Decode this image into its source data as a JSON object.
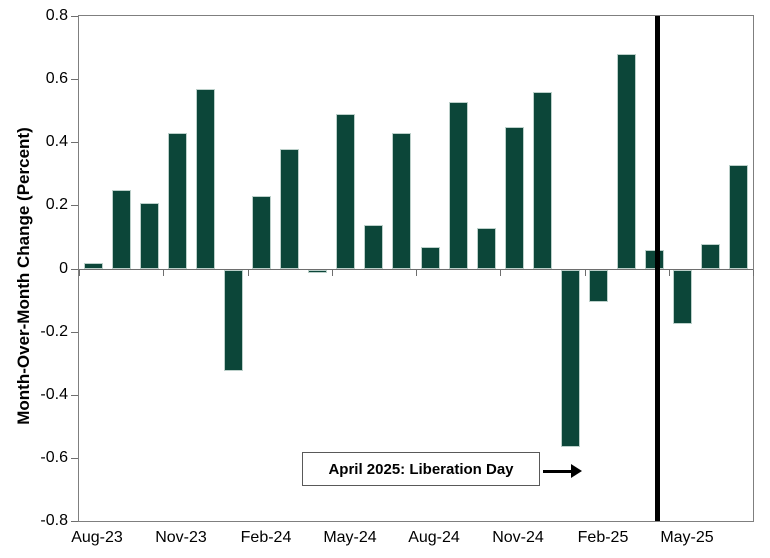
{
  "chart_data": {
    "type": "bar",
    "title": "",
    "xlabel": "",
    "ylabel": "Month-Over-Month Change (Percent)",
    "ylim": [
      -0.8,
      0.8
    ],
    "ytick_interval": 0.2,
    "ytick_labels": [
      "0.8",
      "0.6",
      "0.4",
      "0.2",
      "0",
      "-0.2",
      "-0.4",
      "-0.6",
      "-0.8"
    ],
    "grid": false,
    "legend_position": "none",
    "bar_color": "#0c4639",
    "bar_edge_color": "#bcd0ca",
    "categories": [
      "Aug-23",
      "Sep-23",
      "Oct-23",
      "Nov-23",
      "Dec-23",
      "Jan-24",
      "Feb-24",
      "Mar-24",
      "Apr-24",
      "May-24",
      "Jun-24",
      "Jul-24",
      "Aug-24",
      "Sep-24",
      "Oct-24",
      "Nov-24",
      "Dec-24",
      "Jan-25",
      "Feb-25",
      "Mar-25",
      "Apr-25",
      "May-25",
      "Jun-25",
      "Jul-25"
    ],
    "values": [
      0.02,
      0.25,
      0.21,
      0.43,
      0.57,
      -0.32,
      0.23,
      0.38,
      -0.01,
      0.49,
      0.14,
      0.43,
      0.07,
      0.53,
      0.13,
      0.45,
      0.56,
      -0.56,
      -0.1,
      0.68,
      0.06,
      -0.17,
      0.08,
      0.33
    ],
    "x_tick_label_every": 3,
    "x_shown_labels": [
      "Aug-23",
      "Nov-23",
      "Feb-24",
      "May-24",
      "Aug-24",
      "Nov-24",
      "Feb-25",
      "May-25"
    ]
  },
  "annotation": {
    "label": "April 2025: Liberation Day",
    "event_category": "Apr-25",
    "line_color": "#000000"
  }
}
